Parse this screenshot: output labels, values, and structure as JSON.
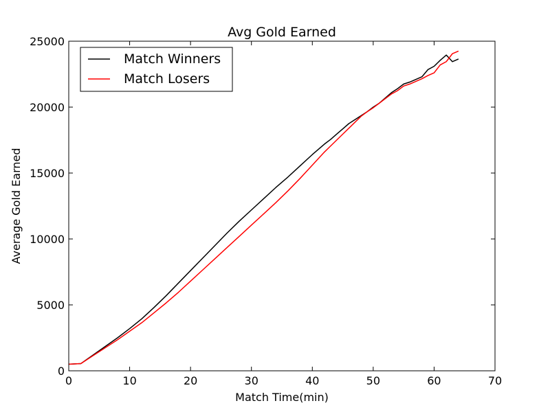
{
  "chart_data": {
    "type": "line",
    "title": "Avg Gold Earned",
    "xlabel": "Match Time(min)",
    "ylabel": "Average Gold Earned",
    "xlim": [
      0,
      70
    ],
    "ylim": [
      0,
      25000
    ],
    "x_ticks": [
      0,
      10,
      20,
      30,
      40,
      50,
      60,
      70
    ],
    "y_ticks": [
      0,
      5000,
      10000,
      15000,
      20000,
      25000
    ],
    "grid": false,
    "legend_position": "top-left",
    "series": [
      {
        "name": "Match Winners",
        "color": "#000000",
        "x": [
          0,
          2,
          4,
          6,
          8,
          10,
          12,
          14,
          16,
          18,
          20,
          22,
          24,
          26,
          28,
          30,
          32,
          34,
          36,
          38,
          40,
          41,
          42,
          43,
          44,
          45,
          46,
          47,
          48,
          49,
          50,
          51,
          52,
          53,
          54,
          55,
          56,
          57,
          58,
          59,
          60,
          61,
          62,
          63,
          64
        ],
        "values": [
          500,
          550,
          1200,
          1850,
          2500,
          3200,
          3950,
          4800,
          5700,
          6650,
          7600,
          8550,
          9500,
          10450,
          11350,
          12200,
          13050,
          13900,
          14700,
          15550,
          16400,
          16800,
          17200,
          17550,
          17950,
          18350,
          18750,
          19050,
          19350,
          19650,
          20000,
          20300,
          20700,
          21100,
          21400,
          21750,
          21900,
          22100,
          22300,
          22850,
          23100,
          23550,
          23950,
          23450,
          23650
        ]
      },
      {
        "name": "Match Losers",
        "color": "#ff0000",
        "x": [
          0,
          2,
          4,
          6,
          8,
          10,
          12,
          14,
          16,
          18,
          20,
          22,
          24,
          26,
          28,
          30,
          32,
          34,
          36,
          38,
          40,
          41,
          42,
          43,
          44,
          45,
          46,
          47,
          48,
          49,
          50,
          51,
          52,
          53,
          54,
          55,
          56,
          57,
          58,
          59,
          60,
          61,
          62,
          63,
          64
        ],
        "values": [
          500,
          550,
          1150,
          1750,
          2350,
          3000,
          3650,
          4400,
          5150,
          5950,
          6800,
          7650,
          8500,
          9350,
          10200,
          11050,
          11900,
          12750,
          13650,
          14600,
          15600,
          16100,
          16600,
          17050,
          17500,
          17950,
          18400,
          18850,
          19300,
          19650,
          19950,
          20300,
          20650,
          21000,
          21250,
          21600,
          21750,
          21950,
          22150,
          22400,
          22600,
          23200,
          23450,
          24050,
          24250
        ]
      }
    ]
  }
}
